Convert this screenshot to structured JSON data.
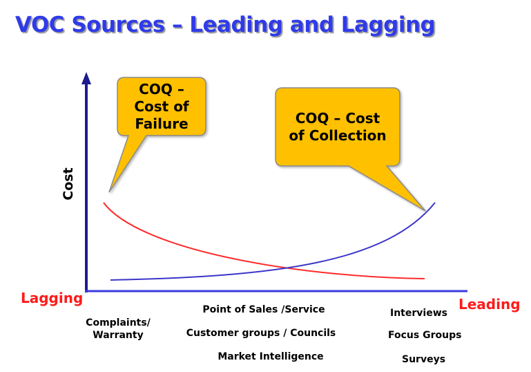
{
  "title": "VOC Sources – Leading and Lagging",
  "callouts": {
    "failure": [
      "COQ –",
      "Cost of",
      "Failure"
    ],
    "collection": [
      "COQ – Cost",
      "of Collection"
    ]
  },
  "axis": {
    "y_label": "Cost",
    "left_label": "Lagging",
    "right_label": "Leading"
  },
  "sources": {
    "lagging": [
      "Complaints/",
      "Warranty"
    ],
    "middle": [
      "Point of Sales /Service",
      "Customer  groups / Councils",
      "Market Intelligence"
    ],
    "leading": [
      "Interviews",
      "Focus Groups",
      "Surveys"
    ]
  },
  "colors": {
    "title": "#2f3be8",
    "axis": "#1c1c8c",
    "failure_curve": "#ff2a2a",
    "collection_curve": "#3b35c8",
    "callout_fill": "#ffc000",
    "callout_stroke": "#8a8a8a",
    "end_labels": "#ff1a1a"
  }
}
